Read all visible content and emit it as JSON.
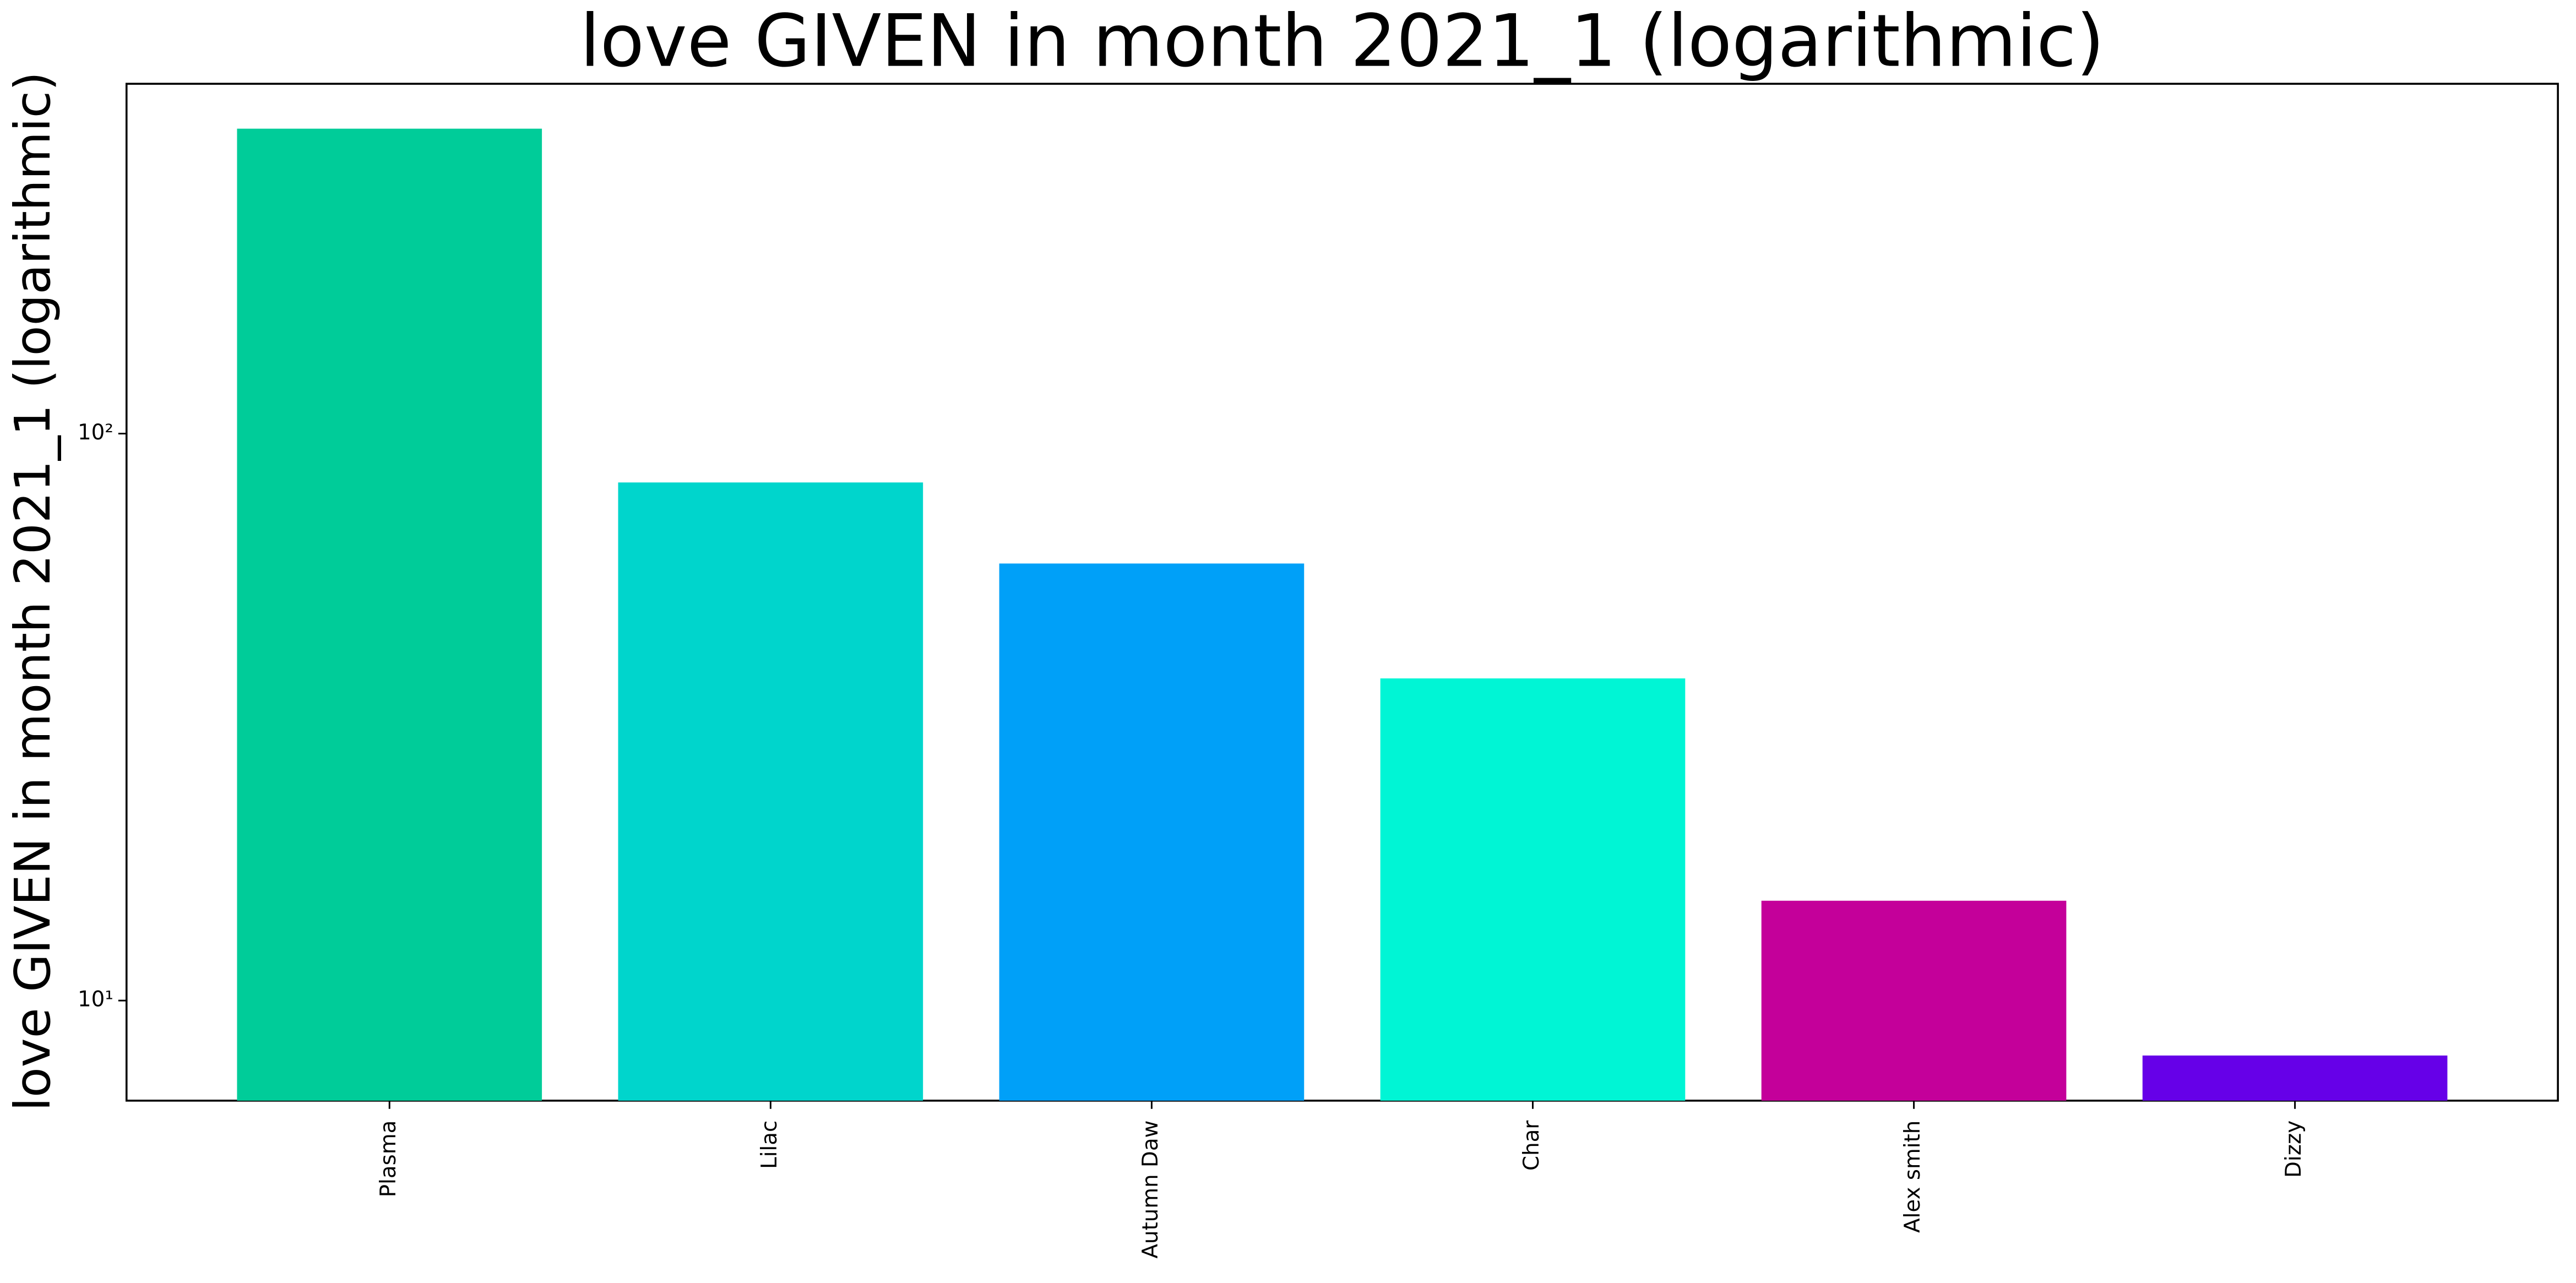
{
  "chart_data": {
    "type": "bar",
    "title": "love GIVEN in month 2021_1 (logarithmic)",
    "y_label": "love GIVEN in month 2021_1 (logarithmic)",
    "categories": [
      "Plasma",
      "Lilac",
      "Autumn Daw",
      "Char",
      "Alex smith",
      "Dizzy"
    ],
    "values": [
      345,
      82,
      59,
      37,
      15,
      8
    ],
    "colors": [
      "#00cc99",
      "#00d5cc",
      "#00a0f8",
      "#00f5d5",
      "#c4009a",
      "#6600e8"
    ],
    "y_scale": "log",
    "ylim": [
      6.66,
      414
    ],
    "yticks": [
      {
        "value": 10,
        "label": "10¹"
      },
      {
        "value": 100,
        "label": "10²"
      }
    ],
    "grid": false
  }
}
